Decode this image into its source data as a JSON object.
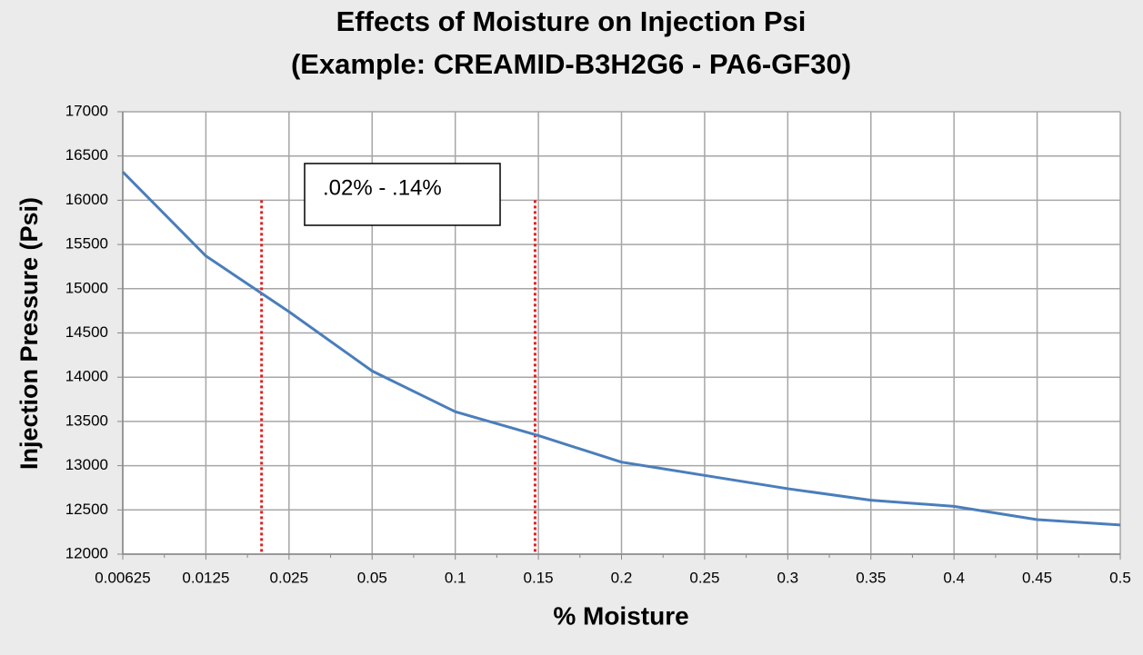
{
  "chart_data": {
    "type": "line",
    "title": "Effects of Moisture on Injection Psi",
    "subtitle": "(Example: CREAMID-B3H2G6 - PA6-GF30)",
    "x_label": "% Moisture",
    "y_label": "Injection Pressure (Psi)",
    "categories": [
      "0.00625",
      "0.0125",
      "0.025",
      "0.05",
      "0.1",
      "0.15",
      "0.2",
      "0.25",
      "0.3",
      "0.35",
      "0.4",
      "0.45",
      "0.5"
    ],
    "values": [
      16320,
      15370,
      14740,
      14070,
      13610,
      13340,
      13040,
      12890,
      12740,
      12610,
      12540,
      12390,
      12330
    ],
    "color": "#4a7ebb",
    "ylim": [
      12000,
      17000
    ],
    "yticks": [
      12000,
      12500,
      13000,
      13500,
      14000,
      14500,
      15000,
      15500,
      16000,
      16500,
      17000
    ],
    "grid": true,
    "reference_lines": [
      {
        "x": 1.67,
        "y_top": 16000
      },
      {
        "x": 4.96,
        "y_top": 16000
      }
    ],
    "reference_color": "#e02020",
    "annotation": ".02% - .14%"
  }
}
